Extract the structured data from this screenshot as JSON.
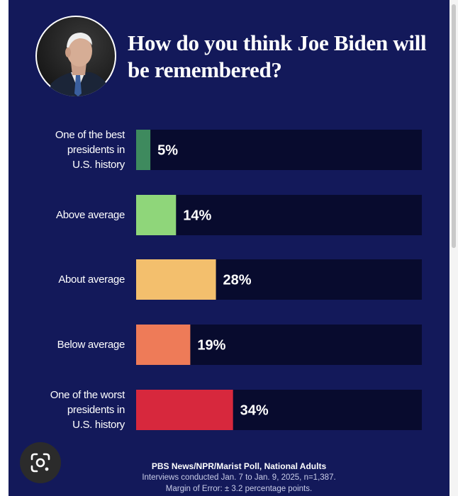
{
  "title": "How do you think Joe Biden will be remembered?",
  "chart_data": {
    "type": "bar",
    "orientation": "horizontal",
    "title": "How do you think Joe Biden will be remembered?",
    "categories": [
      "One of the best\npresidents in\nU.S. history",
      "Above average",
      "About average",
      "Below average",
      "One of the worst\npresidents in\nU.S. history"
    ],
    "values": [
      5,
      14,
      28,
      19,
      34
    ],
    "value_labels": [
      "5%",
      "14%",
      "28%",
      "19%",
      "34%"
    ],
    "colors": [
      "#3e8a5e",
      "#8fd67a",
      "#f3bf6d",
      "#ee7b58",
      "#d7283d"
    ],
    "xlim": [
      0,
      100
    ],
    "grid": false,
    "legend": "none"
  },
  "footer": {
    "source": "PBS News/NPR/Marist Poll, National Adults",
    "line2": "Interviews conducted Jan. 7 to Jan. 9, 2025, n=1,387.",
    "line3": "Margin of Error: ± 3.2 percentage points."
  },
  "colors": {
    "background": "#13195a",
    "track": "#080b2e"
  },
  "icons": {
    "lens": "google-lens-icon",
    "portrait": "portrait-photo"
  }
}
